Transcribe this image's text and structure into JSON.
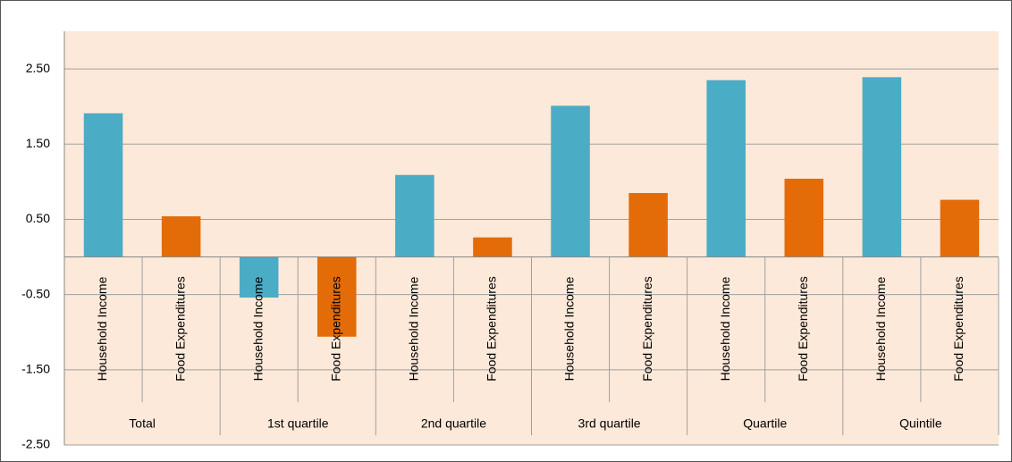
{
  "chart_data": {
    "type": "bar",
    "categories": [
      "Total",
      "1st quartile",
      "2nd quartile",
      "3rd quartile",
      "Quartile",
      "Quintile"
    ],
    "series": [
      {
        "name": "Household Income",
        "color": "#4bacc6",
        "values": [
          1.91,
          -0.54,
          1.09,
          2.01,
          2.35,
          2.39
        ]
      },
      {
        "name": "Food Expenditures",
        "color": "#e36c09",
        "values": [
          0.54,
          -1.06,
          0.26,
          0.85,
          1.04,
          0.76
        ]
      }
    ],
    "ylim": [
      -2.5,
      3
    ],
    "yticks": [
      {
        "value": -2.5,
        "label": "-2.50"
      },
      {
        "value": -1.5,
        "label": "-1.50"
      },
      {
        "value": -0.5,
        "label": "-0.50"
      },
      {
        "value": 0.5,
        "label": "0.50"
      },
      {
        "value": 1.5,
        "label": "1.50"
      },
      {
        "value": 2.5,
        "label": "2.50"
      }
    ],
    "grid": true
  }
}
